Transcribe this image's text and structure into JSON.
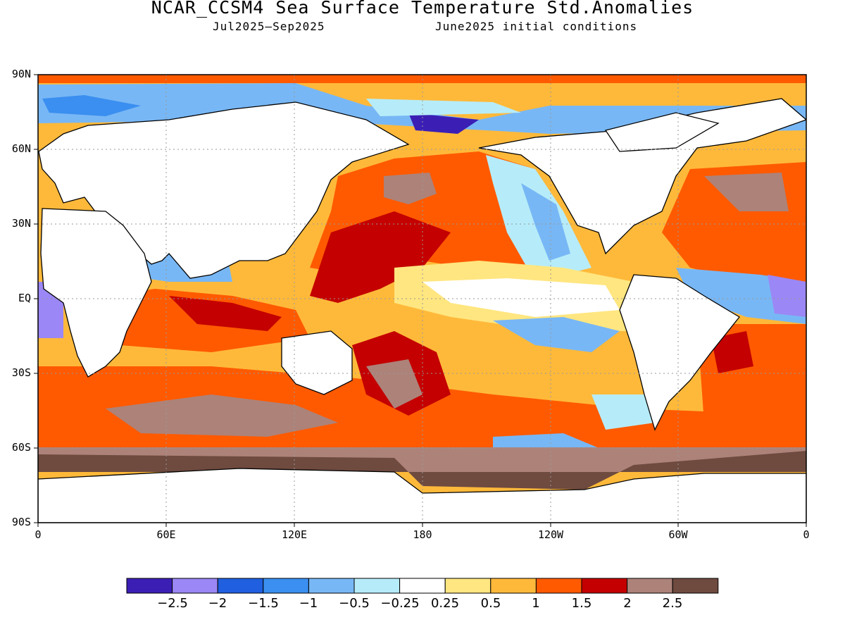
{
  "header": {
    "title": "NCAR_CCSM4 Sea Surface Temperature Std.Anomalies",
    "period": "Jul2025–Sep2025",
    "init": "June2025 initial conditions"
  },
  "axes": {
    "lat_labels": [
      "90N",
      "60N",
      "30N",
      "EQ",
      "30S",
      "60S",
      "90S"
    ],
    "lon_labels": [
      "0",
      "60E",
      "120E",
      "180",
      "120W",
      "60W",
      "0"
    ]
  },
  "colorbar": {
    "colors": [
      "#3b1fb5",
      "#9b87f5",
      "#1f5fe0",
      "#3a8ff0",
      "#78b7f5",
      "#b6ecf9",
      "#ffffff",
      "#ffe680",
      "#ffb93a",
      "#ff5a00",
      "#c40000",
      "#ad8279",
      "#6e4a3f"
    ],
    "labels": [
      "−2.5",
      "−2",
      "−1.5",
      "−1",
      "−0.5",
      "−0.25",
      "0.25",
      "0.5",
      "1",
      "1.5",
      "2",
      "2.5"
    ]
  },
  "colors": {
    "land": "#ffffff",
    "sea_ice": "#6e4a3f",
    "grid": "#999999"
  }
}
